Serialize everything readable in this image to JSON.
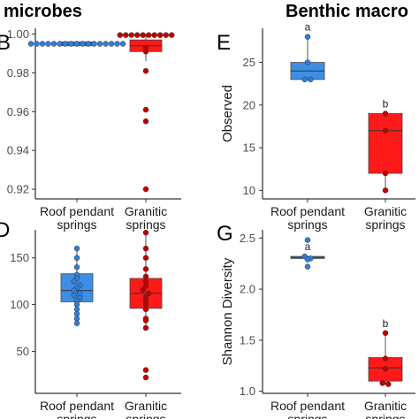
{
  "headers": {
    "left": "microbes",
    "right": "Benthic macro"
  },
  "colors": {
    "roof": "#3d8fe6",
    "granitic": "#ff1a1a",
    "roof_point": "#2f7fd9",
    "granitic_point": "#c00000"
  },
  "chart_data": [
    {
      "id": "panel-b",
      "type": "box",
      "panel_label": "B",
      "ylabel": "",
      "categories": [
        "Roof pendant\nsprings",
        "Granitic\nsprings"
      ],
      "ylim": [
        0.915,
        1.003
      ],
      "yticks": [
        0.92,
        0.94,
        0.96,
        0.98,
        1.0
      ],
      "ytick_labels": [
        "0.92",
        "0.94",
        "0.96",
        "0.98",
        "1.00"
      ],
      "boxes": [
        {
          "q1": 0.994,
          "median": 0.995,
          "q3": 0.996,
          "whisker_low": 0.994,
          "whisker_high": 0.996
        },
        {
          "q1": 0.991,
          "median": 0.994,
          "q3": 0.997,
          "whisker_low": 0.986,
          "whisker_high": 1.0
        }
      ],
      "points": [
        [
          0.995,
          0.995,
          0.995,
          0.995,
          0.995,
          0.995,
          0.995,
          0.995,
          0.995,
          0.995,
          0.995,
          0.995,
          0.995,
          0.995,
          0.995,
          0.995,
          0.995
        ],
        [
          0.9995,
          0.9995,
          0.9995,
          0.9995,
          0.9995,
          0.9995,
          0.9995,
          0.9995,
          0.9995,
          0.9995,
          0.993,
          0.991,
          0.981,
          0.961,
          0.955,
          0.92
        ]
      ],
      "grid": false
    },
    {
      "id": "panel-e",
      "type": "box",
      "panel_label": "E",
      "ylabel": "Observed",
      "categories": [
        "Roof pendant\nsprings",
        "Granitic\nsprings"
      ],
      "ylim": [
        9.0,
        29.0
      ],
      "yticks": [
        10,
        15,
        20,
        25
      ],
      "ytick_labels": [
        "10",
        "15",
        "20",
        "25"
      ],
      "boxes": [
        {
          "q1": 23,
          "median": 24,
          "q3": 25,
          "whisker_low": 23,
          "whisker_high": 28
        },
        {
          "q1": 12,
          "median": 17,
          "q3": 19,
          "whisker_low": 10,
          "whisker_high": 19
        }
      ],
      "points": [
        [
          28,
          25,
          23,
          23
        ],
        [
          19,
          17,
          12,
          10
        ]
      ],
      "letters": [
        "a",
        "b"
      ],
      "grid": false
    },
    {
      "id": "panel-d",
      "type": "box",
      "panel_label": "D",
      "ylabel": "",
      "categories": [
        "Roof pendant\nsprings",
        "Granitic\nsprings"
      ],
      "ylim": [
        5,
        180
      ],
      "yticks": [
        50,
        100,
        150
      ],
      "ytick_labels": [
        "50",
        "100",
        "150"
      ],
      "boxes": [
        {
          "q1": 103,
          "median": 115,
          "q3": 133,
          "whisker_low": 80,
          "whisker_high": 160
        },
        {
          "q1": 96,
          "median": 112,
          "q3": 128,
          "whisker_low": 75,
          "whisker_high": 177
        }
      ],
      "points": [
        [
          160,
          150,
          140,
          132,
          128,
          125,
          121,
          118,
          115,
          112,
          110,
          107,
          104,
          100,
          95,
          90,
          85,
          80
        ],
        [
          177,
          160,
          150,
          138,
          130,
          125,
          120,
          116,
          112,
          108,
          104,
          100,
          95,
          85,
          83,
          75,
          30,
          22
        ]
      ],
      "grid": false
    },
    {
      "id": "panel-g",
      "type": "box",
      "panel_label": "G",
      "ylabel": "Shannon Diversity",
      "categories": [
        "Roof pendant\nsprings",
        "Granitic\nsprings"
      ],
      "ylim": [
        0.98,
        2.58
      ],
      "yticks": [
        1.0,
        1.5,
        2.0,
        2.5
      ],
      "ytick_labels": [
        "1.0",
        "1.5",
        "2.0",
        "2.5"
      ],
      "boxes": [
        {
          "q1": 2.3,
          "median": 2.31,
          "q3": 2.32,
          "whisker_low": 2.3,
          "whisker_high": 2.32
        },
        {
          "q1": 1.1,
          "median": 1.23,
          "q3": 1.33,
          "whisker_low": 1.07,
          "whisker_high": 1.57
        }
      ],
      "points": [
        [
          2.48,
          2.32,
          2.3,
          2.29,
          2.22
        ],
        [
          1.57,
          1.32,
          1.22,
          1.08,
          1.07
        ]
      ],
      "letters": [
        "a",
        "b"
      ],
      "grid": false
    }
  ]
}
